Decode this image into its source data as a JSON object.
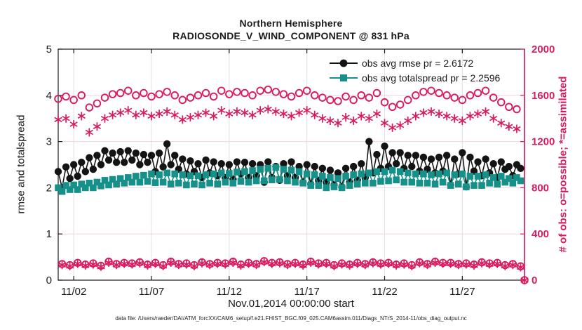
{
  "title": {
    "line1": "Northern Hemisphere",
    "line2": "RADIOSONDE_V_WIND_COMPONENT @ 831 hPa"
  },
  "axes": {
    "left_label": "rmse and totalspread",
    "right_label": "# of obs: o=possible; *=assimilated",
    "x_label": "Nov.01,2014 00:00:00 start",
    "left_ticks": [
      0,
      1,
      2,
      3,
      4,
      5
    ],
    "right_ticks": [
      0,
      400,
      800,
      1200,
      1600,
      2000
    ],
    "x_ticks": [
      {
        "label": "11/02",
        "day": 1
      },
      {
        "label": "11/07",
        "day": 6
      },
      {
        "label": "11/12",
        "day": 11
      },
      {
        "label": "11/17",
        "day": 16
      },
      {
        "label": "11/22",
        "day": 21
      },
      {
        "label": "11/27",
        "day": 26
      }
    ]
  },
  "legend": {
    "rmse_label": "obs avg rmse pr = 2.6172",
    "totalspread_label": "obs avg totalspread pr = 2.2596"
  },
  "footer": "data file: /Users/raeder/DAI/ATM_forcXX/CAM6_setup/f.e21.FHIST_BGC.f09_025.CAM6assim.011/Diags_NTrS_2014-11/obs_diag_output.nc",
  "colors": {
    "pink": "#d81b60",
    "teal": "#16918a",
    "black_series": "#141414",
    "axis": "#1a1a1a",
    "grid_h": "#f5d0de",
    "grid_v": "#e0e0e0",
    "background": "#ffffff"
  },
  "chart_data": {
    "type": "line",
    "title": "Northern Hemisphere",
    "subtitle": "RADIOSONDE_V_WIND_COMPONENT @ 831 hPa",
    "xlabel": "Nov.01,2014 00:00:00 start",
    "ylabel_left": "rmse and totalspread",
    "ylabel_right": "# of obs: o=possible; *=assimilated",
    "x_start": "2014-11-01 00:00",
    "x_step_hours": 6,
    "xlim_days": [
      0,
      30
    ],
    "ylim_left": [
      0,
      5
    ],
    "ylim_right": [
      0,
      2000
    ],
    "grid": true,
    "legend_position": "top-right-inside",
    "obs_avg_rmse_pr": 2.6172,
    "obs_avg_totalspread_pr": 2.2596,
    "series": [
      {
        "name": "obs-avg-rmse",
        "axis": "left",
        "marker": "filled-circle",
        "line": true,
        "color": "#141414",
        "values": [
          2.35,
          2.0,
          2.45,
          2.2,
          2.5,
          2.25,
          2.55,
          2.35,
          2.65,
          2.4,
          2.7,
          2.5,
          2.8,
          2.6,
          2.75,
          2.55,
          2.78,
          2.55,
          2.8,
          2.6,
          2.75,
          2.5,
          2.72,
          2.55,
          2.7,
          2.35,
          2.75,
          2.45,
          2.95,
          2.5,
          2.7,
          2.4,
          2.62,
          2.3,
          2.58,
          2.35,
          2.52,
          2.22,
          2.6,
          2.32,
          2.56,
          2.26,
          2.52,
          2.22,
          2.5,
          2.18,
          2.56,
          2.3,
          2.55,
          2.22,
          2.52,
          2.26,
          2.5,
          2.12,
          2.56,
          2.22,
          2.46,
          2.16,
          2.52,
          2.26,
          2.56,
          2.22,
          2.46,
          2.12,
          2.5,
          2.08,
          2.46,
          2.16,
          2.42,
          2.12,
          2.38,
          2.06,
          2.32,
          2.02,
          2.42,
          2.12,
          2.46,
          2.16,
          2.52,
          2.22,
          3.0,
          2.32,
          2.72,
          2.42,
          2.9,
          2.46,
          2.76,
          2.52,
          2.76,
          2.42,
          2.7,
          2.46,
          2.7,
          2.36,
          2.66,
          2.4,
          2.62,
          2.32,
          2.66,
          2.36,
          2.7,
          2.06,
          2.62,
          2.3,
          2.76,
          2.02,
          2.66,
          2.36,
          2.56,
          2.26,
          2.62,
          2.32,
          2.52,
          2.22,
          2.56,
          2.4,
          2.46,
          2.26,
          2.5,
          2.42
        ]
      },
      {
        "name": "obs-avg-totalspread",
        "axis": "left",
        "marker": "filled-square",
        "line": true,
        "color": "#16918a",
        "values": [
          2.0,
          1.92,
          2.05,
          1.96,
          2.06,
          1.96,
          2.08,
          2.0,
          2.1,
          2.0,
          2.12,
          2.04,
          2.16,
          2.06,
          2.18,
          2.08,
          2.2,
          2.1,
          2.22,
          2.12,
          2.25,
          2.12,
          2.27,
          2.14,
          2.3,
          2.11,
          2.28,
          2.12,
          2.32,
          2.08,
          2.3,
          2.1,
          2.28,
          2.06,
          2.26,
          2.08,
          2.26,
          2.06,
          2.28,
          2.1,
          2.3,
          2.08,
          2.32,
          2.12,
          2.31,
          2.1,
          2.34,
          2.14,
          2.35,
          2.12,
          2.37,
          2.15,
          2.4,
          2.15,
          2.42,
          2.17,
          2.44,
          2.18,
          2.4,
          2.15,
          2.38,
          2.12,
          2.35,
          2.1,
          2.3,
          2.05,
          2.28,
          2.05,
          2.25,
          2.0,
          2.22,
          2.02,
          2.2,
          2.0,
          2.25,
          2.05,
          2.28,
          2.08,
          2.3,
          2.1,
          2.32,
          2.1,
          2.35,
          2.14,
          2.35,
          2.15,
          2.38,
          2.17,
          2.35,
          2.12,
          2.32,
          2.12,
          2.3,
          2.1,
          2.3,
          2.1,
          2.28,
          2.08,
          2.3,
          2.12,
          2.32,
          2.05,
          2.28,
          2.08,
          2.3,
          2.02,
          2.25,
          2.05,
          2.25,
          2.05,
          2.28,
          2.1,
          2.22,
          2.08,
          2.25,
          2.12,
          2.2,
          2.1,
          2.22,
          2.15
        ]
      },
      {
        "name": "num-obs-possible",
        "axis": "right",
        "marker": "open-circle",
        "line": false,
        "color": "#d81b60",
        "values": [
          1570,
          140,
          1590,
          130,
          1560,
          150,
          1600,
          135,
          1495,
          145,
          1530,
          125,
          1580,
          160,
          1610,
          140,
          1620,
          150,
          1640,
          145,
          1600,
          155,
          1620,
          135,
          1590,
          150,
          1610,
          130,
          1630,
          160,
          1600,
          140,
          1560,
          145,
          1580,
          130,
          1600,
          155,
          1620,
          140,
          1590,
          150,
          1640,
          145,
          1610,
          160,
          1630,
          135,
          1620,
          150,
          1600,
          140,
          1640,
          165,
          1650,
          150,
          1630,
          155,
          1610,
          140,
          1590,
          150,
          1620,
          135,
          1640,
          160,
          1600,
          145,
          1580,
          150,
          1560,
          130,
          1550,
          145,
          1590,
          135,
          1560,
          150,
          1600,
          140,
          1580,
          155,
          1620,
          145,
          1540,
          150,
          1500,
          135,
          1520,
          145,
          1560,
          130,
          1600,
          155,
          1630,
          140,
          1640,
          160,
          1620,
          150,
          1600,
          150,
          1580,
          140,
          1560,
          145,
          1600,
          135,
          1620,
          155,
          1640,
          145,
          1580,
          150,
          1540,
          130,
          1500,
          140,
          1480,
          120,
          0
        ]
      },
      {
        "name": "num-obs-assimilated",
        "axis": "right",
        "marker": "asterisk",
        "line": false,
        "color": "#d81b60",
        "values": [
          1390,
          132,
          1400,
          122,
          1350,
          142,
          1420,
          127,
          1280,
          137,
          1330,
          117,
          1400,
          152,
          1430,
          132,
          1450,
          142,
          1470,
          137,
          1430,
          147,
          1450,
          127,
          1420,
          142,
          1440,
          122,
          1460,
          152,
          1430,
          132,
          1390,
          137,
          1410,
          122,
          1430,
          147,
          1450,
          132,
          1420,
          142,
          1470,
          137,
          1440,
          152,
          1460,
          127,
          1450,
          142,
          1430,
          132,
          1470,
          157,
          1480,
          142,
          1460,
          147,
          1440,
          132,
          1420,
          142,
          1450,
          127,
          1470,
          152,
          1430,
          137,
          1400,
          142,
          1380,
          122,
          1360,
          137,
          1410,
          127,
          1380,
          142,
          1420,
          132,
          1400,
          147,
          1440,
          137,
          1360,
          142,
          1320,
          127,
          1340,
          137,
          1380,
          122,
          1420,
          147,
          1450,
          132,
          1460,
          152,
          1440,
          142,
          1420,
          142,
          1400,
          132,
          1380,
          137,
          1420,
          127,
          1440,
          147,
          1460,
          137,
          1400,
          142,
          1360,
          122,
          1330,
          132,
          1310,
          112,
          0
        ]
      }
    ]
  }
}
